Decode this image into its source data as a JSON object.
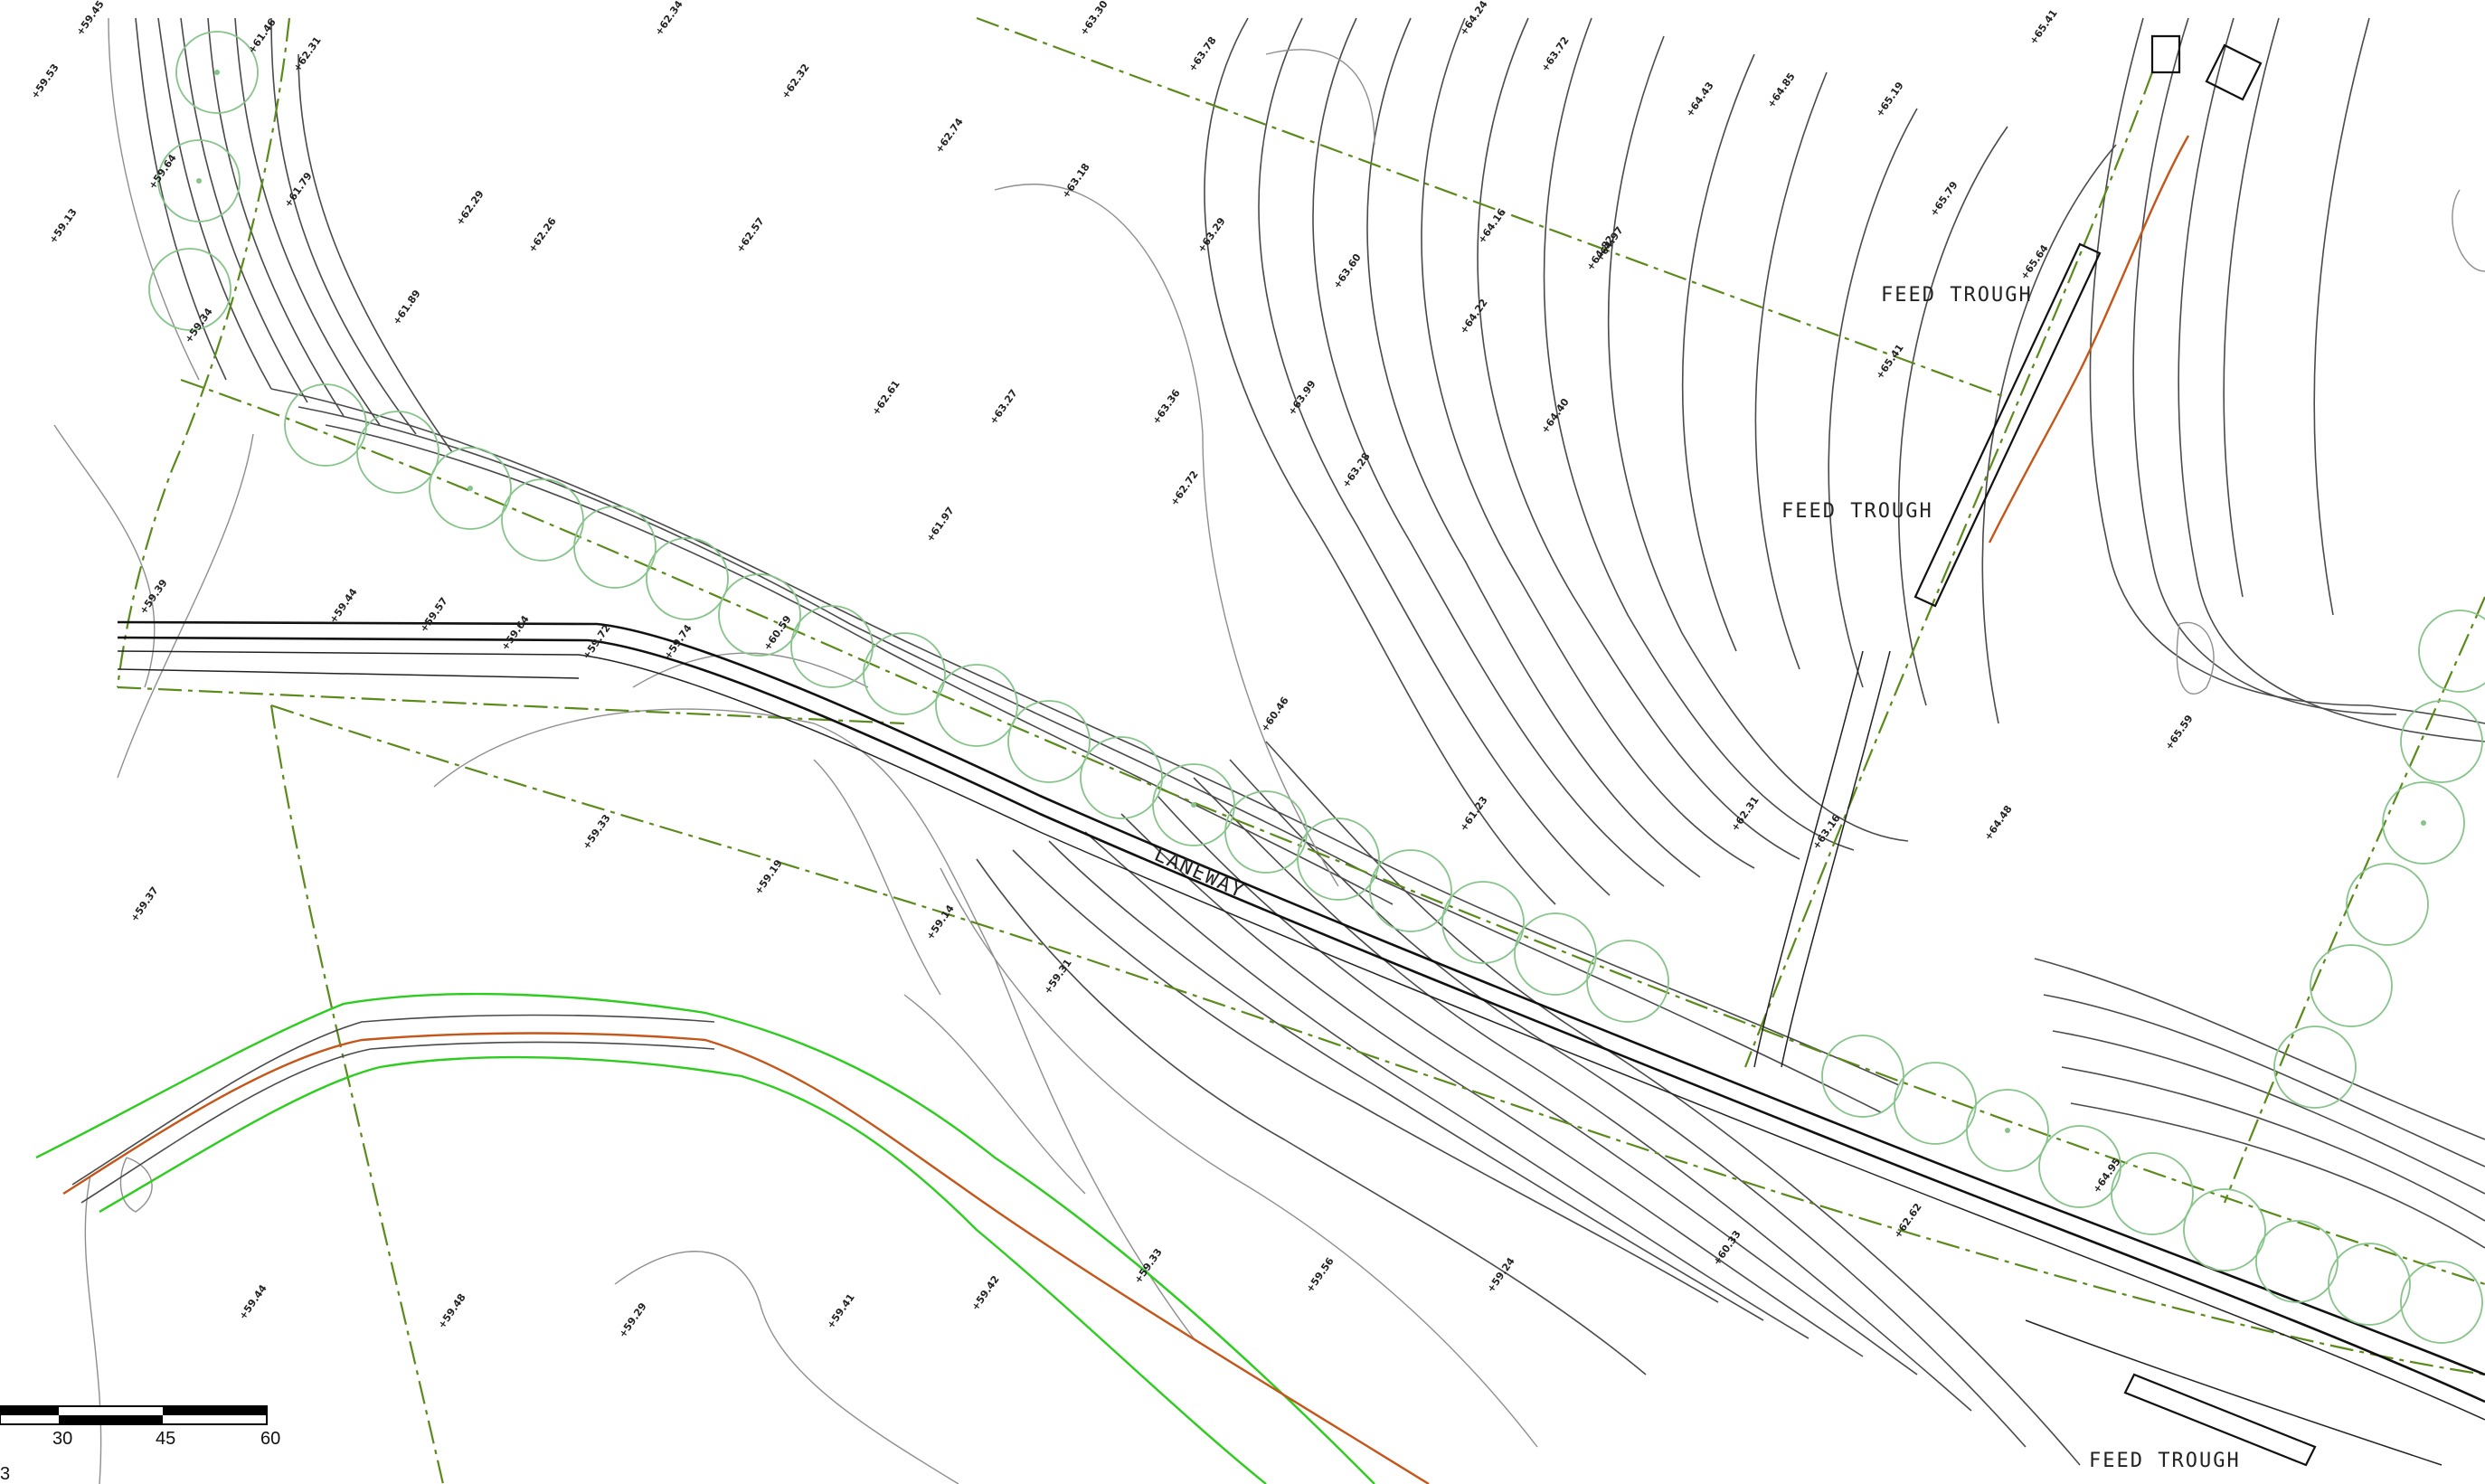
{
  "labels": {
    "laneway": "LANEWAY",
    "feed_trough_1": "FEED TROUGH",
    "feed_trough_2": "FEED TROUGH",
    "feed_trough_3": "FEED TROUGH"
  },
  "scale_bar": {
    "ticks": [
      "30",
      "45",
      "60"
    ],
    "corner_label": "3"
  },
  "spot_heights": [
    "+59.45",
    "+61.46",
    "+62.31",
    "+62.34",
    "+63.30",
    "+63.78",
    "+64.24",
    "+63.72",
    "+64.43",
    "+64.85",
    "+65.19",
    "+65.41",
    "+59.53",
    "+59.64",
    "+61.79",
    "+62.29",
    "+62.32",
    "+62.74",
    "+63.18",
    "+63.29",
    "+63.60",
    "+64.16",
    "+64.97",
    "+65.79",
    "+59.13",
    "+59.34",
    "+61.89",
    "+62.26",
    "+62.57",
    "+62.61",
    "+63.27",
    "+63.36",
    "+63.99",
    "+64.22",
    "+64.82",
    "+65.64",
    "+59.39",
    "+59.44",
    "+59.57",
    "+59.64",
    "+59.72",
    "+59.74",
    "+60.59",
    "+61.97",
    "+62.72",
    "+63.28",
    "+64.40",
    "+65.41",
    "+59.37",
    "+59.33",
    "+59.19",
    "+59.14",
    "+59.31",
    "+60.46",
    "+61.23",
    "+62.31",
    "+63.16",
    "+64.48",
    "+65.59",
    "+59.44",
    "+59.48",
    "+59.29",
    "+59.41",
    "+59.42",
    "+59.33",
    "+59.56",
    "+59.24",
    "+60.33",
    "+62.62",
    "+64.95"
  ]
}
